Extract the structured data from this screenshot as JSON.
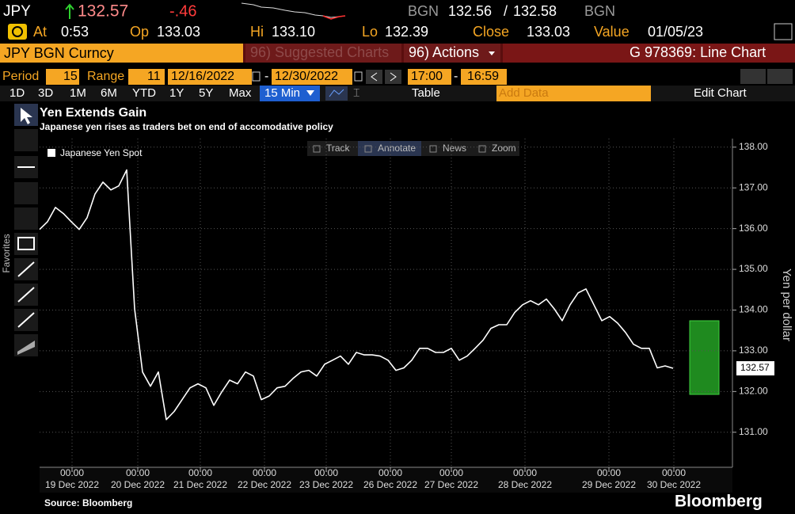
{
  "header": {
    "ticker": "JPY",
    "price": "132.57",
    "change": "-.46",
    "bid_source": "BGN",
    "bid": "132.56",
    "separator": "/",
    "ask": "132.58",
    "ask_source": "BGN"
  },
  "quote": [
    {
      "label": "At",
      "value": "0:53"
    },
    {
      "label": "Op",
      "value": "133.03"
    },
    {
      "label": "Hi",
      "value": "133.10"
    },
    {
      "label": "Lo",
      "value": "132.39"
    },
    {
      "label": "Close",
      "value": "133.03"
    },
    {
      "label": "Value",
      "value": "01/05/23"
    }
  ],
  "toolbar": {
    "security": "JPY BGN Curncy",
    "suggested": "96) Suggested Charts",
    "actions": "96) Actions",
    "chart_id": "G 978369: Line Chart"
  },
  "settings": {
    "period_label": "Period",
    "period": "15",
    "range_label": "Range",
    "range": "11",
    "start_date": "12/16/2022",
    "date_dash": "-",
    "end_date": "12/30/2022",
    "start_time": "17:00",
    "time_dash": "-",
    "end_time": "16:59"
  },
  "buttons": [
    "1D",
    "3D",
    "1M",
    "6M",
    "YTD",
    "1Y",
    "5Y",
    "Max"
  ],
  "interval": "15 Min",
  "table": "Table",
  "add_data": "Add Data",
  "edit_chart": "Edit Chart",
  "chart_tools": [
    "Track",
    "Annotate",
    "News",
    "Zoom"
  ],
  "favorites": "Favorites",
  "footer": {
    "source": "Source: Bloomberg",
    "brand": "Bloomberg"
  },
  "chart_data": {
    "type": "line",
    "title": "Yen Extends Gain",
    "subtitle": "Japanese yen rises as traders bet on end of accomodative policy",
    "y_label": "Yen per dollar",
    "last_value_label": "132.57",
    "series": [
      {
        "name": "Japanese Yen Spot",
        "color": "#ffffff",
        "values": [
          135.98,
          136.17,
          136.52,
          136.37,
          136.17,
          135.98,
          136.27,
          136.85,
          137.14,
          136.95,
          137.05,
          137.44,
          134.03,
          132.48,
          132.13,
          132.48,
          131.31,
          131.51,
          131.8,
          132.09,
          132.19,
          132.09,
          131.66,
          131.99,
          132.28,
          132.19,
          132.48,
          132.38,
          131.8,
          131.89,
          132.09,
          132.13,
          132.32,
          132.48,
          132.52,
          132.38,
          132.67,
          132.77,
          132.87,
          132.67,
          132.96,
          132.9,
          132.9,
          132.87,
          132.77,
          132.52,
          132.58,
          132.77,
          133.06,
          133.06,
          132.96,
          132.96,
          133.06,
          132.77,
          132.87,
          133.06,
          133.26,
          133.55,
          133.64,
          133.64,
          133.94,
          134.13,
          134.23,
          134.13,
          134.27,
          134.03,
          133.74,
          134.13,
          134.42,
          134.52,
          134.13,
          133.74,
          133.84,
          133.68,
          133.45,
          133.16,
          133.06,
          133.06,
          132.58,
          132.63,
          132.57
        ]
      }
    ],
    "x": [
      0,
      1,
      2,
      3,
      4,
      5,
      6,
      7,
      8,
      9,
      10,
      11,
      12,
      13,
      14,
      15,
      16,
      17,
      18,
      19,
      20,
      21,
      22,
      23,
      24,
      25,
      26,
      27,
      28,
      29,
      30,
      31,
      32,
      33,
      34,
      35,
      36,
      37,
      38,
      39,
      40,
      41,
      42,
      43,
      44,
      45,
      46,
      47,
      48,
      49,
      50,
      51,
      52,
      53,
      54,
      55,
      56,
      57,
      58,
      59,
      60,
      61,
      62,
      63,
      64,
      65,
      66,
      67,
      68,
      69,
      70,
      71,
      72,
      73,
      74,
      75,
      76,
      77,
      78,
      79,
      80
    ],
    "xlim": [
      0,
      87.5
    ],
    "xticks": [
      {
        "value": 4.1,
        "label": "00:00"
      },
      {
        "value": 12.4,
        "label": "00:00"
      },
      {
        "value": 20.3,
        "label": "00:00"
      },
      {
        "value": 28.4,
        "label": "00:00"
      },
      {
        "value": 36.2,
        "label": "00:00"
      },
      {
        "value": 44.3,
        "label": "00:00"
      },
      {
        "value": 52.0,
        "label": "00:00"
      },
      {
        "value": 61.3,
        "label": "00:00"
      },
      {
        "value": 71.9,
        "label": "00:00"
      },
      {
        "value": 80.1,
        "label": "00:00"
      }
    ],
    "xtick_dates": [
      "19 Dec 2022",
      "20 Dec 2022",
      "21 Dec 2022",
      "22 Dec 2022",
      "23 Dec 2022",
      "26 Dec 2022",
      "27 Dec 2022",
      "28 Dec 2022",
      "29 Dec 2022",
      "30 Dec 2022"
    ],
    "ylim": [
      130.14,
      138.21
    ],
    "yticks": [
      {
        "value": 131,
        "label": "131.00"
      },
      {
        "value": 132,
        "label": "132.00"
      },
      {
        "value": 133,
        "label": "133.00"
      },
      {
        "value": 134,
        "label": "134.00"
      },
      {
        "value": 135,
        "label": "135.00"
      },
      {
        "value": 136,
        "label": "136.00"
      },
      {
        "value": 137,
        "label": "137.00"
      },
      {
        "value": 138,
        "label": "138.00"
      }
    ],
    "grid": true
  }
}
